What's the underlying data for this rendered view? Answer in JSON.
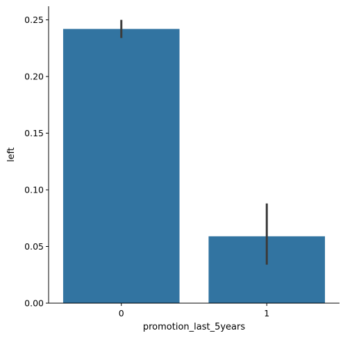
{
  "chart_data": {
    "type": "bar",
    "categories": [
      "0",
      "1"
    ],
    "values": [
      0.242,
      0.059
    ],
    "error_bars": [
      {
        "low": 0.234,
        "high": 0.25
      },
      {
        "low": 0.034,
        "high": 0.088
      }
    ],
    "xlabel": "promotion_last_5years",
    "ylabel": "left",
    "ylim": [
      0,
      0.262
    ],
    "yticks": [
      0.0,
      0.05,
      0.1,
      0.15,
      0.2,
      0.25
    ],
    "ytick_labels": [
      "0.00",
      "0.05",
      "0.10",
      "0.15",
      "0.20",
      "0.25"
    ],
    "grid": false,
    "legend": "none"
  },
  "colors": {
    "bar": "#3274a1",
    "error_bar": "#3b3b3b",
    "axis": "#000000"
  }
}
